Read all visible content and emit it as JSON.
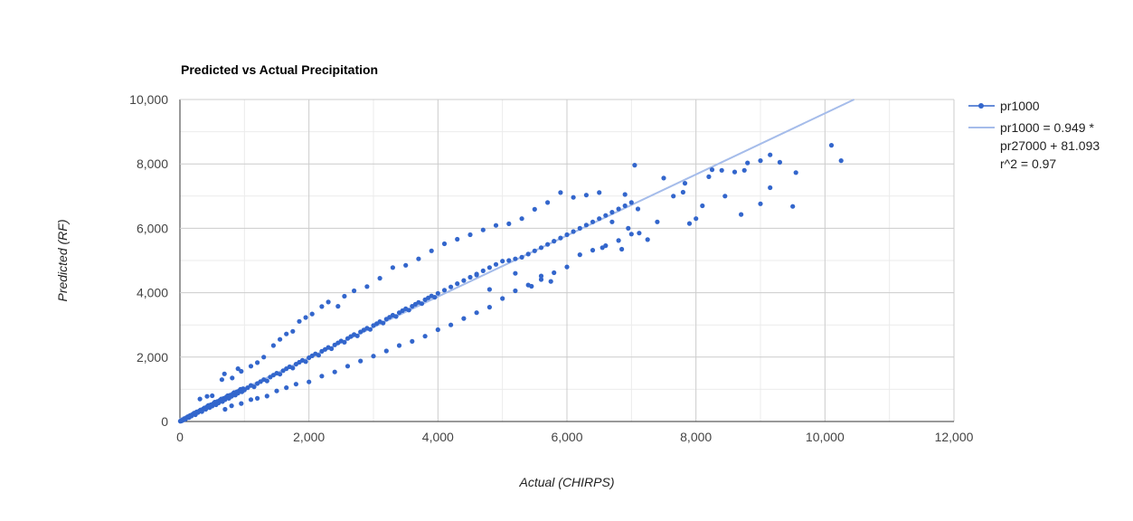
{
  "chart_data": {
    "type": "scatter",
    "title": "Predicted vs Actual Precipitation",
    "xlabel": "Actual (CHIRPS)",
    "ylabel": "Predicted (RF)",
    "xlim": [
      0,
      12000
    ],
    "ylim": [
      0,
      10000
    ],
    "x_ticks": [
      "0",
      "2,000",
      "4,000",
      "6,000",
      "8,000",
      "10,000",
      "12,000"
    ],
    "y_ticks": [
      "0",
      "2,000",
      "4,000",
      "6,000",
      "8,000",
      "10,000"
    ],
    "grid": true,
    "legend_position": "right",
    "colors": {
      "points": "#3366cc",
      "trendline": "#a5bcea"
    },
    "series": [
      {
        "name": "pr1000",
        "points": [
          [
            6,
            10
          ],
          [
            12,
            15
          ],
          [
            18,
            28
          ],
          [
            25,
            20
          ],
          [
            30,
            40
          ],
          [
            40,
            35
          ],
          [
            55,
            60
          ],
          [
            70,
            90
          ],
          [
            85,
            70
          ],
          [
            100,
            110
          ],
          [
            120,
            150
          ],
          [
            140,
            120
          ],
          [
            160,
            190
          ],
          [
            180,
            170
          ],
          [
            200,
            230
          ],
          [
            220,
            260
          ],
          [
            240,
            210
          ],
          [
            260,
            300
          ],
          [
            280,
            280
          ],
          [
            300,
            330
          ],
          [
            320,
            360
          ],
          [
            340,
            310
          ],
          [
            360,
            390
          ],
          [
            380,
            420
          ],
          [
            400,
            380
          ],
          [
            420,
            460
          ],
          [
            440,
            500
          ],
          [
            460,
            430
          ],
          [
            480,
            520
          ],
          [
            500,
            480
          ],
          [
            520,
            560
          ],
          [
            540,
            600
          ],
          [
            560,
            520
          ],
          [
            580,
            620
          ],
          [
            600,
            580
          ],
          [
            620,
            660
          ],
          [
            640,
            700
          ],
          [
            660,
            620
          ],
          [
            680,
            720
          ],
          [
            700,
            680
          ],
          [
            720,
            760
          ],
          [
            740,
            800
          ],
          [
            760,
            720
          ],
          [
            780,
            820
          ],
          [
            800,
            780
          ],
          [
            820,
            860
          ],
          [
            840,
            900
          ],
          [
            860,
            820
          ],
          [
            880,
            920
          ],
          [
            900,
            880
          ],
          [
            920,
            960
          ],
          [
            940,
            1000
          ],
          [
            960,
            920
          ],
          [
            980,
            1020
          ],
          [
            1000,
            980
          ],
          [
            1050,
            1050
          ],
          [
            1100,
            1120
          ],
          [
            1150,
            1080
          ],
          [
            1200,
            1180
          ],
          [
            1250,
            1240
          ],
          [
            1300,
            1300
          ],
          [
            1350,
            1260
          ],
          [
            1400,
            1380
          ],
          [
            1450,
            1440
          ],
          [
            1500,
            1500
          ],
          [
            1550,
            1470
          ],
          [
            1600,
            1580
          ],
          [
            1650,
            1640
          ],
          [
            1700,
            1700
          ],
          [
            1750,
            1660
          ],
          [
            1800,
            1780
          ],
          [
            1850,
            1840
          ],
          [
            1900,
            1900
          ],
          [
            1950,
            1860
          ],
          [
            2000,
            1980
          ],
          [
            2050,
            2040
          ],
          [
            2100,
            2100
          ],
          [
            2150,
            2060
          ],
          [
            2200,
            2180
          ],
          [
            2250,
            2240
          ],
          [
            2300,
            2300
          ],
          [
            2350,
            2260
          ],
          [
            2400,
            2380
          ],
          [
            2450,
            2440
          ],
          [
            2500,
            2500
          ],
          [
            2550,
            2460
          ],
          [
            2600,
            2580
          ],
          [
            2650,
            2640
          ],
          [
            2700,
            2700
          ],
          [
            2750,
            2660
          ],
          [
            2800,
            2780
          ],
          [
            2850,
            2840
          ],
          [
            2900,
            2900
          ],
          [
            2950,
            2860
          ],
          [
            3000,
            2980
          ],
          [
            3050,
            3040
          ],
          [
            3100,
            3100
          ],
          [
            3150,
            3060
          ],
          [
            3200,
            3180
          ],
          [
            3250,
            3240
          ],
          [
            3300,
            3300
          ],
          [
            3350,
            3260
          ],
          [
            3400,
            3380
          ],
          [
            3450,
            3440
          ],
          [
            3500,
            3500
          ],
          [
            3550,
            3460
          ],
          [
            3600,
            3580
          ],
          [
            3650,
            3640
          ],
          [
            3700,
            3700
          ],
          [
            3750,
            3660
          ],
          [
            3800,
            3780
          ],
          [
            3850,
            3840
          ],
          [
            3900,
            3900
          ],
          [
            3950,
            3860
          ],
          [
            4000,
            3980
          ],
          [
            4100,
            4080
          ],
          [
            4200,
            4180
          ],
          [
            4300,
            4280
          ],
          [
            4400,
            4380
          ],
          [
            4500,
            4480
          ],
          [
            4600,
            4580
          ],
          [
            4700,
            4680
          ],
          [
            4800,
            4780
          ],
          [
            4900,
            4880
          ],
          [
            5000,
            4980
          ],
          [
            5100,
            5000
          ],
          [
            5200,
            5050
          ],
          [
            5300,
            5100
          ],
          [
            5400,
            5200
          ],
          [
            5500,
            5300
          ],
          [
            5600,
            5400
          ],
          [
            5700,
            5500
          ],
          [
            5800,
            5600
          ],
          [
            5900,
            5700
          ],
          [
            6000,
            5800
          ],
          [
            6100,
            5900
          ],
          [
            6200,
            6000
          ],
          [
            6300,
            6100
          ],
          [
            6400,
            6200
          ],
          [
            6500,
            6300
          ],
          [
            6600,
            6400
          ],
          [
            6700,
            6500
          ],
          [
            6800,
            6600
          ],
          [
            6900,
            6700
          ],
          [
            7000,
            6800
          ],
          [
            310,
            700
          ],
          [
            420,
            780
          ],
          [
            500,
            800
          ],
          [
            650,
            1300
          ],
          [
            690,
            1480
          ],
          [
            810,
            1350
          ],
          [
            900,
            1640
          ],
          [
            950,
            1560
          ],
          [
            1100,
            1720
          ],
          [
            1200,
            1830
          ],
          [
            1300,
            2000
          ],
          [
            1450,
            2360
          ],
          [
            1550,
            2550
          ],
          [
            1650,
            2720
          ],
          [
            1750,
            2800
          ],
          [
            1850,
            3110
          ],
          [
            1950,
            3230
          ],
          [
            2050,
            3340
          ],
          [
            2200,
            3570
          ],
          [
            2300,
            3710
          ],
          [
            2450,
            3580
          ],
          [
            2550,
            3890
          ],
          [
            2700,
            4060
          ],
          [
            2900,
            4190
          ],
          [
            3100,
            4450
          ],
          [
            3300,
            4780
          ],
          [
            3500,
            4850
          ],
          [
            3700,
            5050
          ],
          [
            3900,
            5300
          ],
          [
            4100,
            5520
          ],
          [
            4300,
            5660
          ],
          [
            4500,
            5800
          ],
          [
            4700,
            5950
          ],
          [
            4900,
            6090
          ],
          [
            5100,
            6140
          ],
          [
            5300,
            6300
          ],
          [
            5500,
            6590
          ],
          [
            5700,
            6800
          ],
          [
            5900,
            7110
          ],
          [
            6100,
            6960
          ],
          [
            6300,
            7030
          ],
          [
            6500,
            7110
          ],
          [
            700,
            380
          ],
          [
            800,
            490
          ],
          [
            950,
            560
          ],
          [
            1100,
            680
          ],
          [
            1200,
            720
          ],
          [
            1350,
            790
          ],
          [
            1500,
            950
          ],
          [
            1650,
            1050
          ],
          [
            1800,
            1160
          ],
          [
            2000,
            1230
          ],
          [
            2200,
            1410
          ],
          [
            2400,
            1540
          ],
          [
            2600,
            1720
          ],
          [
            2800,
            1880
          ],
          [
            3000,
            2030
          ],
          [
            3200,
            2190
          ],
          [
            3400,
            2360
          ],
          [
            3600,
            2490
          ],
          [
            3800,
            2650
          ],
          [
            4000,
            2850
          ],
          [
            4200,
            3000
          ],
          [
            4400,
            3200
          ],
          [
            4600,
            3380
          ],
          [
            4800,
            3550
          ],
          [
            5000,
            3820
          ],
          [
            5200,
            4060
          ],
          [
            5400,
            4240
          ],
          [
            5600,
            4410
          ],
          [
            5800,
            4620
          ],
          [
            6000,
            4800
          ],
          [
            6200,
            5180
          ],
          [
            6400,
            5320
          ],
          [
            6600,
            5460
          ],
          [
            6800,
            5620
          ],
          [
            7000,
            5820
          ],
          [
            7050,
            7960
          ],
          [
            7500,
            7560
          ],
          [
            7800,
            7120
          ],
          [
            7830,
            7400
          ],
          [
            7650,
            7000
          ],
          [
            7400,
            6200
          ],
          [
            7250,
            5650
          ],
          [
            7900,
            6150
          ],
          [
            8000,
            6300
          ],
          [
            8100,
            6700
          ],
          [
            8200,
            7600
          ],
          [
            8250,
            7820
          ],
          [
            8400,
            7800
          ],
          [
            8450,
            7000
          ],
          [
            8600,
            7750
          ],
          [
            8750,
            7800
          ],
          [
            8800,
            8030
          ],
          [
            9000,
            8100
          ],
          [
            9150,
            8280
          ],
          [
            9300,
            8050
          ],
          [
            9550,
            7730
          ],
          [
            8700,
            6430
          ],
          [
            9000,
            6760
          ],
          [
            9150,
            7260
          ],
          [
            9500,
            6680
          ],
          [
            10100,
            8580
          ],
          [
            10250,
            8100
          ],
          [
            6900,
            7050
          ],
          [
            6950,
            6000
          ],
          [
            7100,
            6600
          ],
          [
            6700,
            6200
          ],
          [
            6550,
            5400
          ],
          [
            6850,
            5350
          ],
          [
            7120,
            5850
          ],
          [
            5600,
            4520
          ],
          [
            5750,
            4350
          ],
          [
            4600,
            4550
          ],
          [
            4800,
            4100
          ],
          [
            5200,
            4600
          ],
          [
            5450,
            4200
          ]
        ]
      }
    ],
    "trendline": {
      "name": "pr1000 = 0.949 *",
      "label_lines": [
        "pr1000 = 0.949 *",
        "pr27000 + 81.093",
        "r^2 = 0.97"
      ],
      "slope": 0.949,
      "intercept": 81.093,
      "r2": 0.97
    }
  }
}
